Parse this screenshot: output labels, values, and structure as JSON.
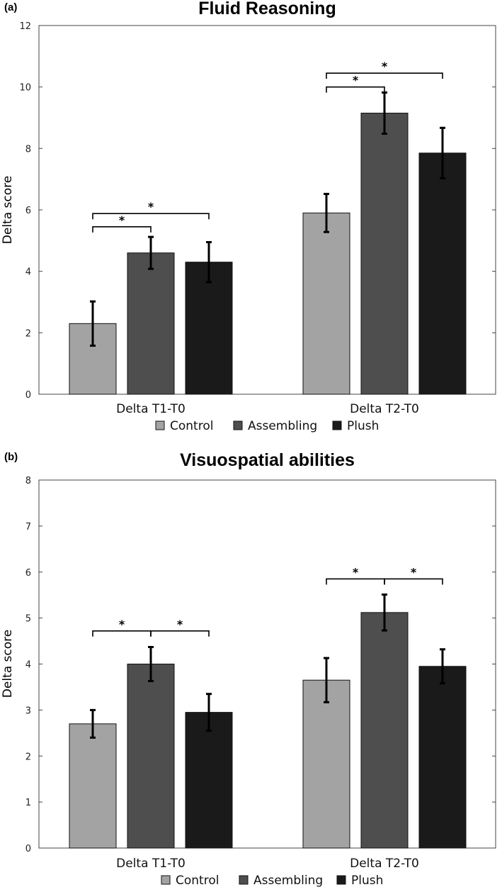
{
  "chart_data": [
    {
      "type": "bar",
      "panel_label": "(a)",
      "title": "Fluid Reasoning",
      "xlabel": "",
      "ylabel": "Delta score",
      "ylim": [
        0,
        12
      ],
      "yticks": [
        "0",
        "2",
        "4",
        "6",
        "8",
        "10",
        "12"
      ],
      "categories": [
        "Delta T1-T0",
        "Delta T2-T0"
      ],
      "series": [
        {
          "name": "Control",
          "color": "#a3a3a3",
          "values": [
            2.3,
            5.9
          ],
          "errors": [
            0.72,
            0.62
          ]
        },
        {
          "name": "Assembling",
          "color": "#4e4e4e",
          "values": [
            4.6,
            9.15
          ],
          "errors": [
            0.52,
            0.67
          ]
        },
        {
          "name": "Plush",
          "color": "#1a1a1a",
          "values": [
            4.3,
            7.85
          ],
          "errors": [
            0.65,
            0.82
          ]
        }
      ],
      "significance": [
        {
          "category": 0,
          "from": 0,
          "to": 1,
          "label": "*",
          "level": 5.45
        },
        {
          "category": 0,
          "from": 0,
          "to": 2,
          "label": "*",
          "level": 5.88
        },
        {
          "category": 1,
          "from": 0,
          "to": 1,
          "label": "*",
          "level": 10.0
        },
        {
          "category": 1,
          "from": 0,
          "to": 2,
          "label": "*",
          "level": 10.45
        }
      ],
      "legend": [
        "Control",
        "Assembling",
        "Plush"
      ]
    },
    {
      "type": "bar",
      "panel_label": "(b)",
      "title": "Visuospatial abilities",
      "xlabel": "",
      "ylabel": "Delta score",
      "ylim": [
        0,
        8
      ],
      "yticks": [
        "0",
        "1",
        "2",
        "3",
        "4",
        "5",
        "6",
        "7",
        "8"
      ],
      "categories": [
        "Delta T1-T0",
        "Delta T2-T0"
      ],
      "series": [
        {
          "name": "Control",
          "color": "#a3a3a3",
          "values": [
            2.7,
            3.65
          ],
          "errors": [
            0.3,
            0.48
          ]
        },
        {
          "name": "Assembling",
          "color": "#4e4e4e",
          "values": [
            4.0,
            5.12
          ],
          "errors": [
            0.37,
            0.39
          ]
        },
        {
          "name": "Plush",
          "color": "#1a1a1a",
          "values": [
            2.95,
            3.95
          ],
          "errors": [
            0.4,
            0.37
          ]
        }
      ],
      "significance": [
        {
          "category": 0,
          "from": 0,
          "to": 1,
          "label": "*",
          "level": 4.72
        },
        {
          "category": 0,
          "from": 1,
          "to": 2,
          "label": "*",
          "level": 4.72
        },
        {
          "category": 1,
          "from": 0,
          "to": 1,
          "label": "*",
          "level": 5.85
        },
        {
          "category": 1,
          "from": 1,
          "to": 2,
          "label": "*",
          "level": 5.85
        }
      ],
      "legend": [
        "Control",
        "Assembling",
        "Plush"
      ]
    }
  ]
}
